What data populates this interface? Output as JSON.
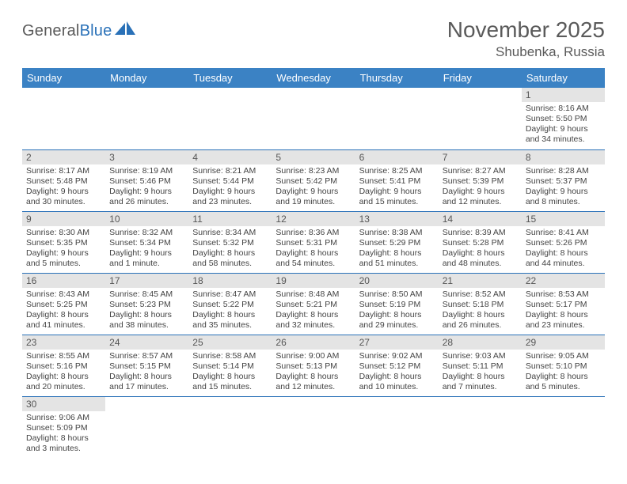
{
  "logo": {
    "word1": "General",
    "word2": "Blue"
  },
  "title": "November 2025",
  "location": "Shubenka, Russia",
  "colors": {
    "header_bg": "#3b82c4",
    "header_text": "#ffffff",
    "border": "#2a71b8",
    "daynum_bg": "#e4e4e4",
    "text": "#333333"
  },
  "weekdays": [
    "Sunday",
    "Monday",
    "Tuesday",
    "Wednesday",
    "Thursday",
    "Friday",
    "Saturday"
  ],
  "weeks": [
    [
      null,
      null,
      null,
      null,
      null,
      null,
      {
        "n": "1",
        "sr": "Sunrise: 8:16 AM",
        "ss": "Sunset: 5:50 PM",
        "d1": "Daylight: 9 hours",
        "d2": "and 34 minutes."
      }
    ],
    [
      {
        "n": "2",
        "sr": "Sunrise: 8:17 AM",
        "ss": "Sunset: 5:48 PM",
        "d1": "Daylight: 9 hours",
        "d2": "and 30 minutes."
      },
      {
        "n": "3",
        "sr": "Sunrise: 8:19 AM",
        "ss": "Sunset: 5:46 PM",
        "d1": "Daylight: 9 hours",
        "d2": "and 26 minutes."
      },
      {
        "n": "4",
        "sr": "Sunrise: 8:21 AM",
        "ss": "Sunset: 5:44 PM",
        "d1": "Daylight: 9 hours",
        "d2": "and 23 minutes."
      },
      {
        "n": "5",
        "sr": "Sunrise: 8:23 AM",
        "ss": "Sunset: 5:42 PM",
        "d1": "Daylight: 9 hours",
        "d2": "and 19 minutes."
      },
      {
        "n": "6",
        "sr": "Sunrise: 8:25 AM",
        "ss": "Sunset: 5:41 PM",
        "d1": "Daylight: 9 hours",
        "d2": "and 15 minutes."
      },
      {
        "n": "7",
        "sr": "Sunrise: 8:27 AM",
        "ss": "Sunset: 5:39 PM",
        "d1": "Daylight: 9 hours",
        "d2": "and 12 minutes."
      },
      {
        "n": "8",
        "sr": "Sunrise: 8:28 AM",
        "ss": "Sunset: 5:37 PM",
        "d1": "Daylight: 9 hours",
        "d2": "and 8 minutes."
      }
    ],
    [
      {
        "n": "9",
        "sr": "Sunrise: 8:30 AM",
        "ss": "Sunset: 5:35 PM",
        "d1": "Daylight: 9 hours",
        "d2": "and 5 minutes."
      },
      {
        "n": "10",
        "sr": "Sunrise: 8:32 AM",
        "ss": "Sunset: 5:34 PM",
        "d1": "Daylight: 9 hours",
        "d2": "and 1 minute."
      },
      {
        "n": "11",
        "sr": "Sunrise: 8:34 AM",
        "ss": "Sunset: 5:32 PM",
        "d1": "Daylight: 8 hours",
        "d2": "and 58 minutes."
      },
      {
        "n": "12",
        "sr": "Sunrise: 8:36 AM",
        "ss": "Sunset: 5:31 PM",
        "d1": "Daylight: 8 hours",
        "d2": "and 54 minutes."
      },
      {
        "n": "13",
        "sr": "Sunrise: 8:38 AM",
        "ss": "Sunset: 5:29 PM",
        "d1": "Daylight: 8 hours",
        "d2": "and 51 minutes."
      },
      {
        "n": "14",
        "sr": "Sunrise: 8:39 AM",
        "ss": "Sunset: 5:28 PM",
        "d1": "Daylight: 8 hours",
        "d2": "and 48 minutes."
      },
      {
        "n": "15",
        "sr": "Sunrise: 8:41 AM",
        "ss": "Sunset: 5:26 PM",
        "d1": "Daylight: 8 hours",
        "d2": "and 44 minutes."
      }
    ],
    [
      {
        "n": "16",
        "sr": "Sunrise: 8:43 AM",
        "ss": "Sunset: 5:25 PM",
        "d1": "Daylight: 8 hours",
        "d2": "and 41 minutes."
      },
      {
        "n": "17",
        "sr": "Sunrise: 8:45 AM",
        "ss": "Sunset: 5:23 PM",
        "d1": "Daylight: 8 hours",
        "d2": "and 38 minutes."
      },
      {
        "n": "18",
        "sr": "Sunrise: 8:47 AM",
        "ss": "Sunset: 5:22 PM",
        "d1": "Daylight: 8 hours",
        "d2": "and 35 minutes."
      },
      {
        "n": "19",
        "sr": "Sunrise: 8:48 AM",
        "ss": "Sunset: 5:21 PM",
        "d1": "Daylight: 8 hours",
        "d2": "and 32 minutes."
      },
      {
        "n": "20",
        "sr": "Sunrise: 8:50 AM",
        "ss": "Sunset: 5:19 PM",
        "d1": "Daylight: 8 hours",
        "d2": "and 29 minutes."
      },
      {
        "n": "21",
        "sr": "Sunrise: 8:52 AM",
        "ss": "Sunset: 5:18 PM",
        "d1": "Daylight: 8 hours",
        "d2": "and 26 minutes."
      },
      {
        "n": "22",
        "sr": "Sunrise: 8:53 AM",
        "ss": "Sunset: 5:17 PM",
        "d1": "Daylight: 8 hours",
        "d2": "and 23 minutes."
      }
    ],
    [
      {
        "n": "23",
        "sr": "Sunrise: 8:55 AM",
        "ss": "Sunset: 5:16 PM",
        "d1": "Daylight: 8 hours",
        "d2": "and 20 minutes."
      },
      {
        "n": "24",
        "sr": "Sunrise: 8:57 AM",
        "ss": "Sunset: 5:15 PM",
        "d1": "Daylight: 8 hours",
        "d2": "and 17 minutes."
      },
      {
        "n": "25",
        "sr": "Sunrise: 8:58 AM",
        "ss": "Sunset: 5:14 PM",
        "d1": "Daylight: 8 hours",
        "d2": "and 15 minutes."
      },
      {
        "n": "26",
        "sr": "Sunrise: 9:00 AM",
        "ss": "Sunset: 5:13 PM",
        "d1": "Daylight: 8 hours",
        "d2": "and 12 minutes."
      },
      {
        "n": "27",
        "sr": "Sunrise: 9:02 AM",
        "ss": "Sunset: 5:12 PM",
        "d1": "Daylight: 8 hours",
        "d2": "and 10 minutes."
      },
      {
        "n": "28",
        "sr": "Sunrise: 9:03 AM",
        "ss": "Sunset: 5:11 PM",
        "d1": "Daylight: 8 hours",
        "d2": "and 7 minutes."
      },
      {
        "n": "29",
        "sr": "Sunrise: 9:05 AM",
        "ss": "Sunset: 5:10 PM",
        "d1": "Daylight: 8 hours",
        "d2": "and 5 minutes."
      }
    ],
    [
      {
        "n": "30",
        "sr": "Sunrise: 9:06 AM",
        "ss": "Sunset: 5:09 PM",
        "d1": "Daylight: 8 hours",
        "d2": "and 3 minutes."
      },
      null,
      null,
      null,
      null,
      null,
      null
    ]
  ]
}
